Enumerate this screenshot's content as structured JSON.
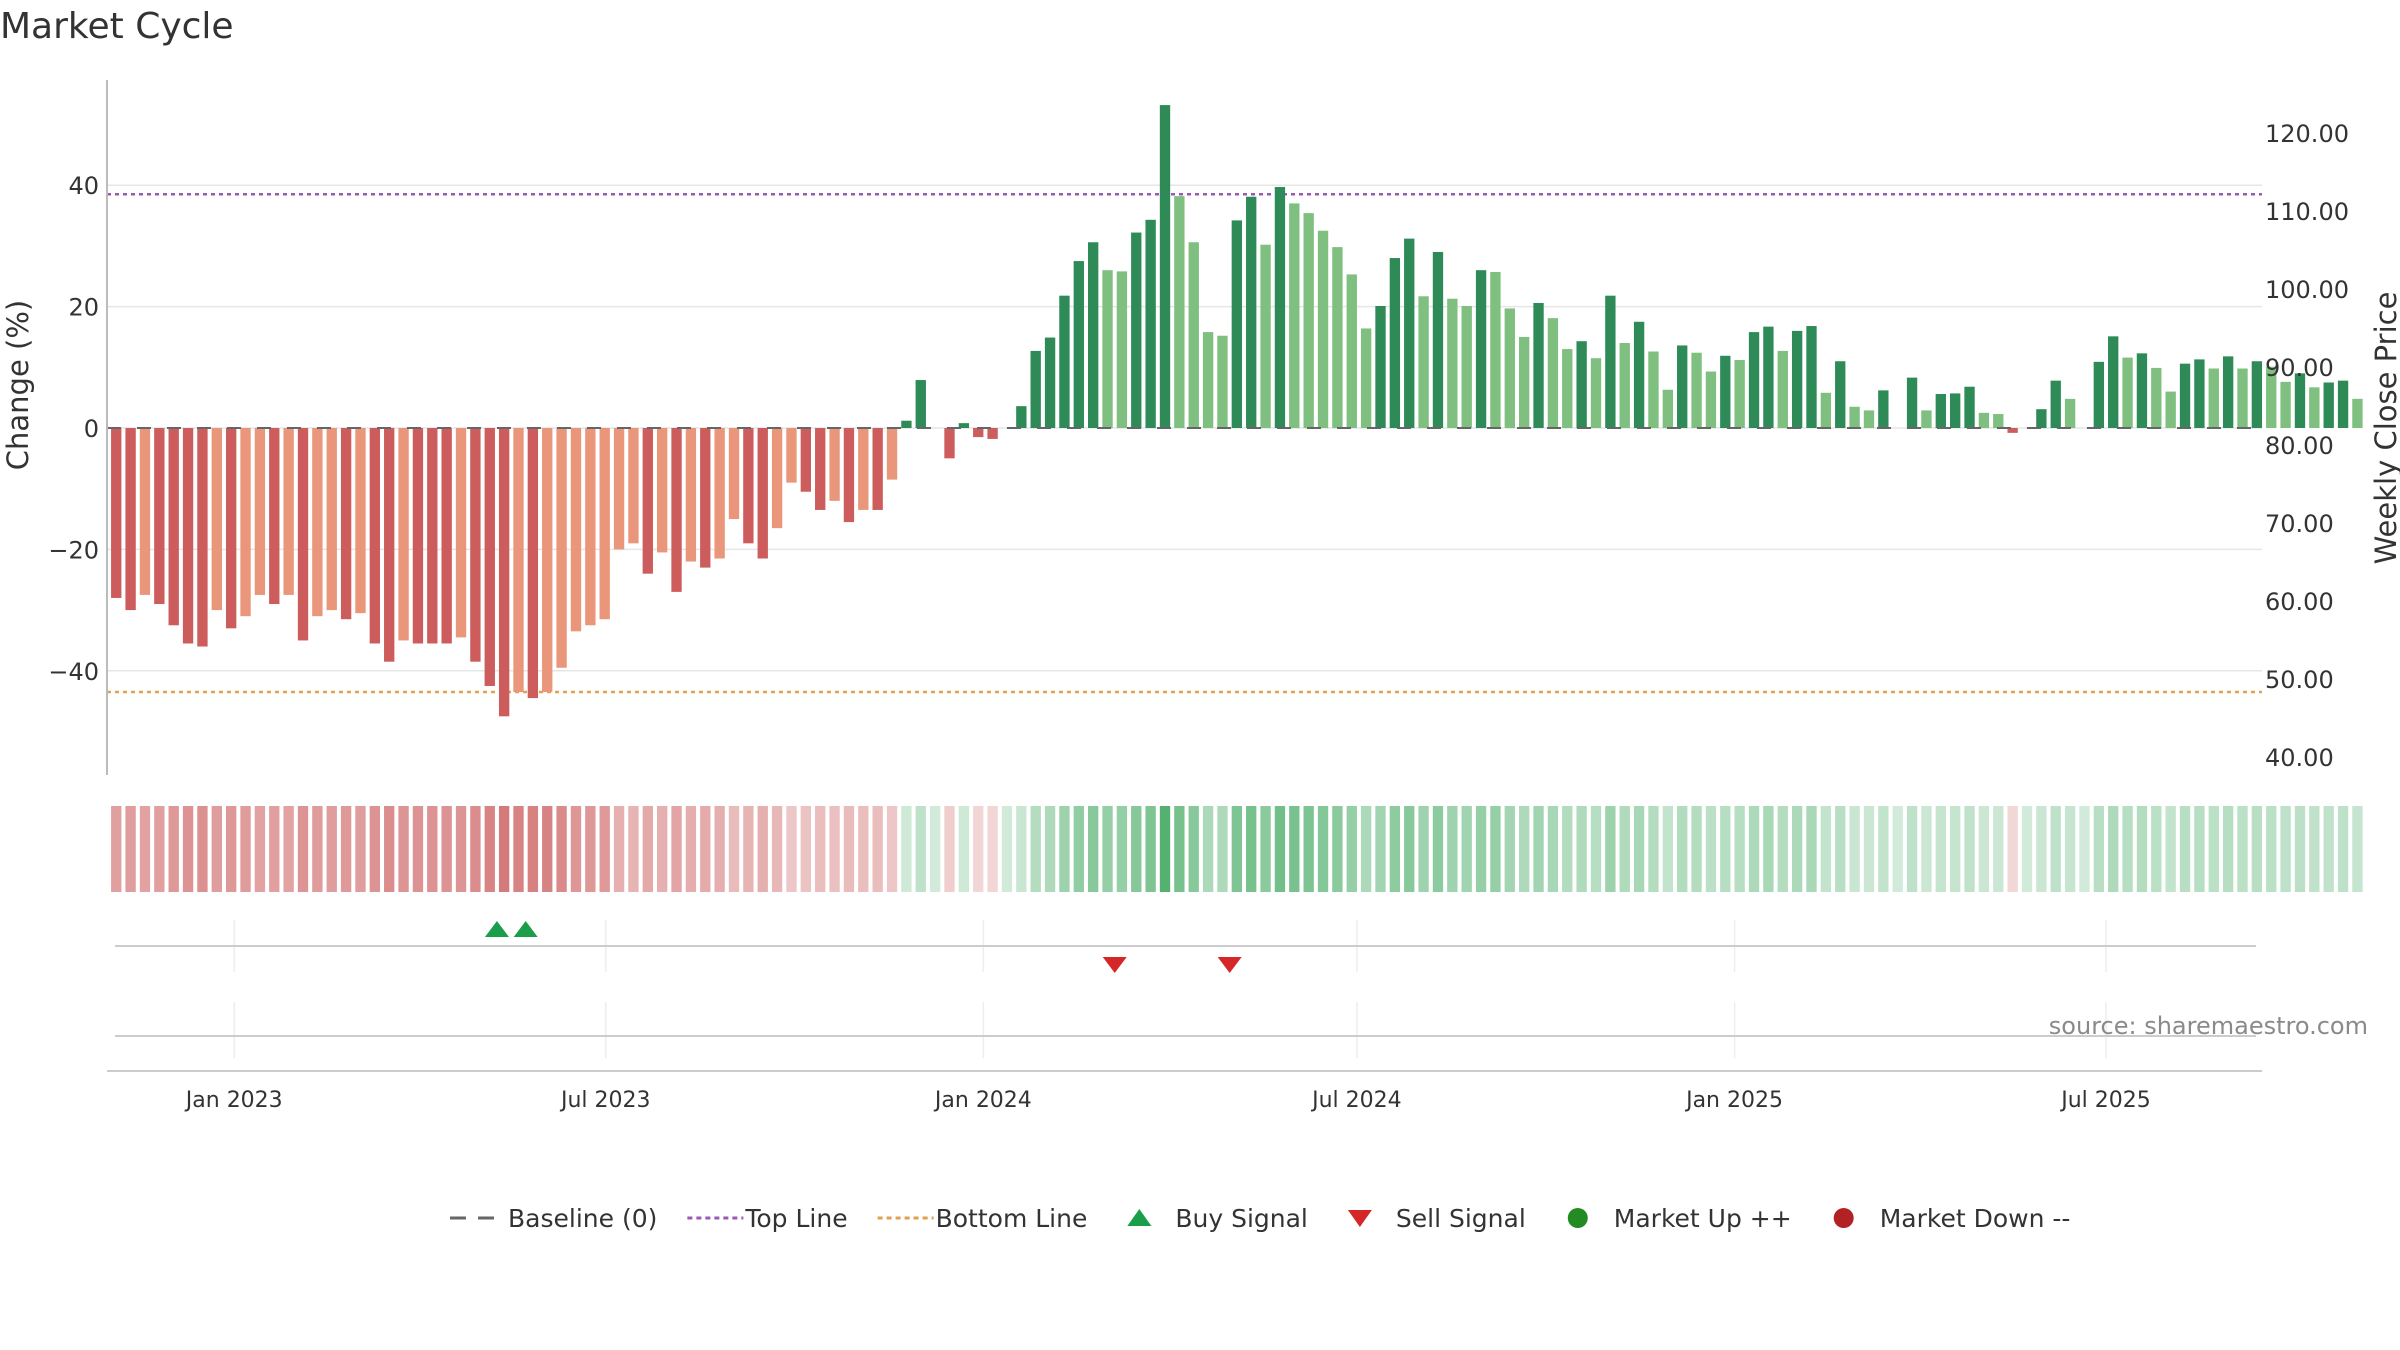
{
  "chart_data": {
    "type": "bar",
    "title": "Market Cycle",
    "ylabel": "Change (%)",
    "y2label": "Weekly Close Price",
    "ylim": [
      -57,
      60
    ],
    "yticks": [
      40,
      20,
      0,
      -20,
      -40
    ],
    "y2ticks": [
      "120.00",
      "110.00",
      "100.00",
      "90.00",
      "80.00",
      "70.00",
      "60.00",
      "50.00",
      "40.00"
    ],
    "x_start": "2022-10-31",
    "x_end": "2025-09-15",
    "xticks": [
      {
        "date": "2023-01-01",
        "label": "Jan 2023"
      },
      {
        "date": "2023-07-01",
        "label": "Jul 2023"
      },
      {
        "date": "2024-01-01",
        "label": "Jan 2024"
      },
      {
        "date": "2024-07-01",
        "label": "Jul 2024"
      },
      {
        "date": "2025-01-01",
        "label": "Jan 2025"
      },
      {
        "date": "2025-07-01",
        "label": "Jul 2025"
      }
    ],
    "first_week": "2022-11-01",
    "series": [
      {
        "name": "Change (%)",
        "values": [
          -28,
          -30,
          -27.5,
          -29,
          -32.5,
          -35.5,
          -36,
          -30,
          -33,
          -31,
          -27.5,
          -29,
          -27.5,
          -35,
          -31,
          -30,
          -31.5,
          -30.5,
          -35.5,
          -38.5,
          -35,
          -35.5,
          -35.5,
          -35.5,
          -34.5,
          -38.5,
          -42.5,
          -47.5,
          -43.5,
          -44.5,
          -43.5,
          -39.5,
          -33.5,
          -32.5,
          -31.5,
          -20,
          -19,
          -24,
          -20.5,
          -27,
          -22,
          -23,
          -21.5,
          -15,
          -19,
          -21.5,
          -16.5,
          -9,
          -10.5,
          -13.5,
          -12,
          -15.5,
          -13.5,
          -13.5,
          -8.5,
          1.2,
          7.9,
          0,
          -5,
          0.8,
          -1.5,
          -1.8,
          0,
          3.6,
          12.7,
          14.9,
          21.8,
          27.5,
          30.6,
          26,
          25.8,
          32.2,
          34.3,
          53.2,
          38.2,
          30.6,
          15.8,
          15.2,
          34.2,
          38.1,
          30.2,
          39.7,
          37,
          35.4,
          32.5,
          29.8,
          25.3,
          16.4,
          20.1,
          28,
          31.2,
          21.7,
          29,
          21.3,
          20.1,
          26,
          25.7,
          19.7,
          15,
          20.6,
          18.1,
          13,
          14.3,
          11.5,
          21.8,
          14,
          17.5,
          12.6,
          6.3,
          13.6,
          12.4,
          9.3,
          11.9,
          11.2,
          15.8,
          16.7,
          12.7,
          16,
          16.8,
          5.8,
          11,
          3.5,
          2.9,
          6.2,
          0,
          8.3,
          2.9,
          5.6,
          5.7,
          6.8,
          2.5,
          2.3,
          -0.8,
          0,
          3.1,
          7.8,
          4.8,
          0,
          10.9,
          15.1,
          11.6,
          12.3,
          9.9,
          6,
          10.6,
          11.3,
          9.8,
          11.8,
          9.8,
          11,
          10.1,
          7.6,
          9,
          6.7,
          7.5,
          7.8,
          4.8
        ]
      }
    ],
    "reference_lines": [
      {
        "name": "Baseline (0)",
        "value": 0,
        "color": "#666666",
        "style": "dashed"
      },
      {
        "name": "Top Line",
        "value": 38.5,
        "color": "#9b59b6",
        "style": "dotted"
      },
      {
        "name": "Bottom Line",
        "value": -43.5,
        "color": "#e0a050",
        "style": "dotted"
      }
    ],
    "buy_signals": [
      "2023-05-09",
      "2023-05-23"
    ],
    "sell_signals": [
      "2024-03-05",
      "2024-04-30"
    ],
    "colors": {
      "up_strong": "#2e8b57",
      "up_light": "#7fbf7f",
      "down_strong": "#cd5c5c",
      "down_light": "#e9967a",
      "buy": "#1a9e4a",
      "sell": "#d62728",
      "market_up": "#228b22",
      "market_down": "#b22222"
    },
    "legend": {
      "placement": "bottom",
      "items": [
        {
          "label": "Baseline (0)",
          "kind": "dash",
          "color": "#666666"
        },
        {
          "label": "Top Line",
          "kind": "dot",
          "color": "#9b59b6"
        },
        {
          "label": "Bottom Line",
          "kind": "dot",
          "color": "#e0a050"
        },
        {
          "label": "Buy Signal",
          "kind": "tri-up",
          "color": "#1a9e4a"
        },
        {
          "label": "Sell Signal",
          "kind": "tri-down",
          "color": "#d62728"
        },
        {
          "label": "Market Up ++",
          "kind": "circle",
          "color": "#228b22"
        },
        {
          "label": "Market Down --",
          "kind": "circle",
          "color": "#b22222"
        }
      ]
    },
    "source": "source: sharemaestro.com"
  }
}
